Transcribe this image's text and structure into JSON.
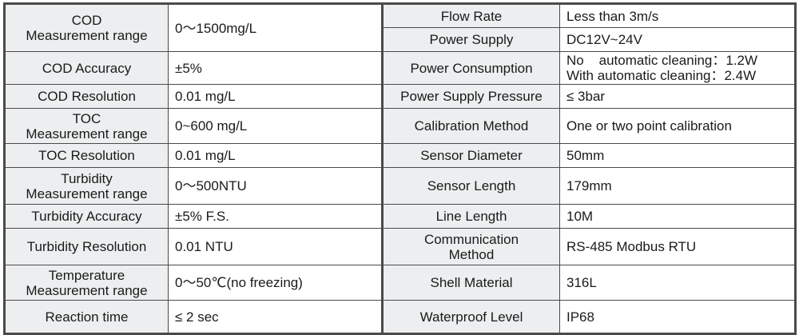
{
  "rows": [
    {
      "l1": "COD",
      "l2": "Measurement range",
      "v1": "0～1500mg/L"
    },
    {
      "l1": "COD Accuracy",
      "v1": "±5%"
    },
    {
      "l1": "COD Resolution",
      "v1": "0.01 mg/L"
    },
    {
      "l1": "TOC",
      "l2": "Measurement range",
      "v1": "0~600 mg/L"
    },
    {
      "l1": "TOC Resolution",
      "v1": "0.01 mg/L"
    },
    {
      "l1": "Turbidity",
      "l2": "Measurement range",
      "v1": "0～500NTU"
    },
    {
      "l1": "Turbidity Accuracy",
      "v1": "±5% F.S."
    },
    {
      "l1": "Turbidity Resolution",
      "v1": "0.01 NTU"
    },
    {
      "l1": "Temperature",
      "l2": "Measurement range",
      "v1": "0～50℃(no freezing)"
    },
    {
      "l1": "Reaction time",
      "v1": "≤ 2 sec"
    }
  ],
  "right": [
    {
      "l1": "Flow Rate",
      "v1": "Less than 3m/s"
    },
    {
      "l1": "Power Supply",
      "v1": "DC12V~24V"
    },
    {
      "l1": "Power Consumption",
      "v1": "No    automatic cleaning：1.2W",
      "v2": "With automatic cleaning：2.4W"
    },
    {
      "l1": "Power Supply Pressure",
      "v1": "≤ 3bar"
    },
    {
      "l1": "Calibration Method",
      "v1": "One or two point calibration"
    },
    {
      "l1": "Sensor Diameter",
      "v1": "50mm"
    },
    {
      "l1": "Sensor Length",
      "v1": "179mm"
    },
    {
      "l1": "Line Length",
      "v1": "10M"
    },
    {
      "l1": "Communication",
      "l2": "Method",
      "v1": "RS-485 Modbus RTU"
    },
    {
      "l1": "Shell Material",
      "v1": "316L"
    },
    {
      "l1": "Waterproof Level",
      "v1": "IP68"
    }
  ]
}
